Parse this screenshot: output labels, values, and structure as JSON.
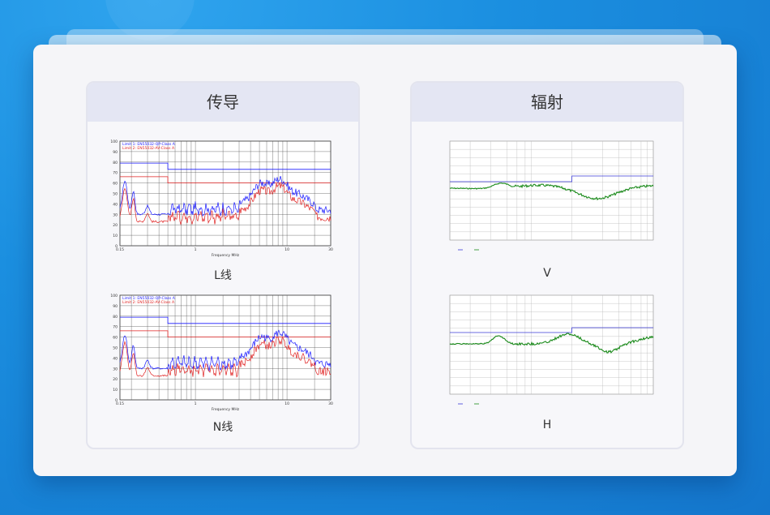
{
  "panels": [
    {
      "title": "传导",
      "charts": [
        {
          "caption": "L线",
          "legend": [
            "Limit 1: EN55032-QP-Class A",
            "Limit 2: EN55032-AV-Class A"
          ],
          "yticks": [
            "100",
            "90",
            "80",
            "70",
            "60",
            "50",
            "40",
            "30",
            "20",
            "10",
            "0"
          ],
          "xticks": [
            "0.15",
            "1",
            "10",
            "30"
          ],
          "xlabel": "Frequency MHz"
        },
        {
          "caption": "N线",
          "legend": [
            "Limit 1: EN55032-QP-Class A",
            "Limit 2: EN55032-AV-Class A"
          ],
          "yticks": [
            "100",
            "90",
            "80",
            "70",
            "60",
            "50",
            "40",
            "30",
            "20",
            "10",
            "0"
          ],
          "xticks": [
            "0.15",
            "1",
            "10",
            "30"
          ],
          "xlabel": "Frequency MHz"
        }
      ]
    },
    {
      "title": "辐射",
      "charts": [
        {
          "caption": "V"
        },
        {
          "caption": "H"
        }
      ]
    }
  ],
  "colors": {
    "qp_limit": "#1a1aff",
    "av_limit": "#e02020",
    "rad_trace": "#1a8a1a",
    "rad_limit": "#3b3bd6"
  }
}
